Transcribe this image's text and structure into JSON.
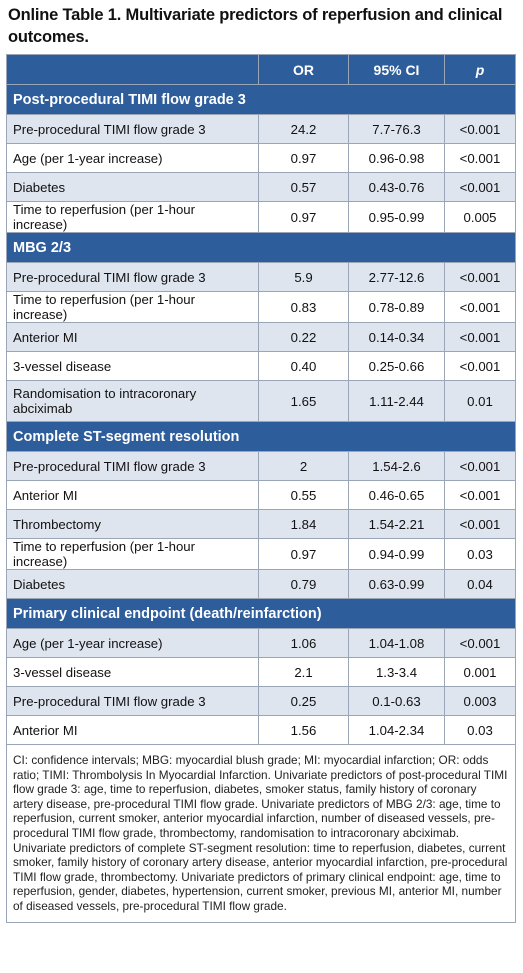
{
  "title": "Online Table 1. Multivariate predictors of reperfusion and clinical outcomes.",
  "headers": [
    "",
    "OR",
    "95% CI",
    "p"
  ],
  "sections": [
    {
      "label": "Post-procedural TIMI flow grade 3",
      "rows": [
        {
          "label": "Pre-procedural TIMI flow grade 3",
          "or": "24.2",
          "ci": "7.7-76.3",
          "p": "<0.001"
        },
        {
          "label": "Age (per 1-year increase)",
          "or": "0.97",
          "ci": "0.96-0.98",
          "p": "<0.001"
        },
        {
          "label": "Diabetes",
          "or": "0.57",
          "ci": "0.43-0.76",
          "p": "<0.001"
        },
        {
          "label": "Time to reperfusion (per 1-hour increase)",
          "or": "0.97",
          "ci": "0.95-0.99",
          "p": "0.005"
        }
      ]
    },
    {
      "label": "MBG 2/3",
      "rows": [
        {
          "label": "Pre-procedural TIMI flow grade 3",
          "or": "5.9",
          "ci": "2.77-12.6",
          "p": "<0.001"
        },
        {
          "label": "Time to reperfusion (per 1-hour increase)",
          "or": "0.83",
          "ci": "0.78-0.89",
          "p": "<0.001"
        },
        {
          "label": "Anterior MI",
          "or": "0.22",
          "ci": "0.14-0.34",
          "p": "<0.001"
        },
        {
          "label": "3-vessel disease",
          "or": "0.40",
          "ci": "0.25-0.66",
          "p": "<0.001"
        },
        {
          "label": "Randomisation to intracoronary abciximab",
          "or": "1.65",
          "ci": "1.11-2.44",
          "p": "0.01"
        }
      ]
    },
    {
      "label": "Complete ST-segment resolution",
      "rows": [
        {
          "label": "Pre-procedural TIMI flow grade 3",
          "or": "2",
          "ci": "1.54-2.6",
          "p": "<0.001"
        },
        {
          "label": "Anterior MI",
          "or": "0.55",
          "ci": "0.46-0.65",
          "p": "<0.001"
        },
        {
          "label": "Thrombectomy",
          "or": "1.84",
          "ci": "1.54-2.21",
          "p": "<0.001"
        },
        {
          "label": "Time to reperfusion (per 1-hour increase)",
          "or": "0.97",
          "ci": "0.94-0.99",
          "p": "0.03"
        },
        {
          "label": "Diabetes",
          "or": "0.79",
          "ci": "0.63-0.99",
          "p": "0.04"
        }
      ]
    },
    {
      "label": "Primary clinical endpoint (death/reinfarction)",
      "rows": [
        {
          "label": "Age (per 1-year increase)",
          "or": "1.06",
          "ci": "1.04-1.08",
          "p": "<0.001"
        },
        {
          "label": "3-vessel disease",
          "or": "2.1",
          "ci": "1.3-3.4",
          "p": "0.001"
        },
        {
          "label": "Pre-procedural TIMI flow grade 3",
          "or": "0.25",
          "ci": "0.1-0.63",
          "p": "0.003"
        },
        {
          "label": "Anterior MI",
          "or": "1.56",
          "ci": "1.04-2.34",
          "p": "0.03"
        }
      ]
    }
  ],
  "footnote": "CI: confidence intervals; MBG: myocardial blush grade; MI: myocardial infarction; OR: odds ratio; TIMI: Thrombolysis In Myocardial Infarction. Univariate predictors of post-procedural TIMI flow grade 3: age, time to reperfusion, diabetes, smoker status, family history of coronary artery disease, pre-procedural TIMI flow grade. Univariate predictors of MBG 2/3: age, time to reperfusion, current smoker, anterior myocardial infarction, number of diseased vessels, pre-procedural TIMI flow grade, thrombectomy, randomisation to intracoronary abciximab. Univariate predictors of complete ST-segment resolution: time to reperfusion, diabetes, current smoker, family history of coronary artery disease, anterior myocardial infarction, pre-procedural TIMI flow grade, thrombectomy. Univariate predictors of primary clinical endpoint: age, time to reperfusion, gender, diabetes, hypertension, current smoker, previous MI, anterior MI, number of diseased vessels, pre-procedural TIMI flow grade.",
  "colors": {
    "header_bg": "#2e5d9c",
    "shaded_row": "#dfe5ef",
    "border": "#9aa6b8"
  }
}
